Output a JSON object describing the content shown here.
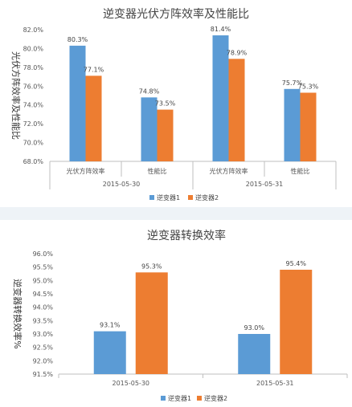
{
  "chart_data": [
    {
      "type": "bar",
      "title": "逆变器光伏方阵效率及性能比",
      "ylabel": "光伏方阵效率及性能比",
      "xlabel": "",
      "ylim": [
        68.0,
        82.0
      ],
      "yticks": [
        "82.0%",
        "80.0%",
        "78.0%",
        "76.0%",
        "74.0%",
        "72.0%",
        "70.0%",
        "68.0%"
      ],
      "groups": [
        "2015-05-30",
        "2015-05-31"
      ],
      "categories": [
        "光伏方阵效率",
        "性能比",
        "光伏方阵效率",
        "性能比"
      ],
      "series": [
        {
          "name": "逆变器1",
          "values": [
            80.3,
            74.8,
            81.4,
            75.7
          ],
          "labels": [
            "80.3%",
            "74.8%",
            "81.4%",
            "75.7%"
          ]
        },
        {
          "name": "逆变器2",
          "values": [
            77.1,
            73.5,
            78.9,
            75.3
          ],
          "labels": [
            "77.1%",
            "73.5%",
            "78.9%",
            "75.3%"
          ]
        }
      ],
      "legend": "bottom",
      "grid": false
    },
    {
      "type": "bar",
      "title": "逆变器转换效率",
      "ylabel": "逆变器转换效率%",
      "xlabel": "",
      "ylim": [
        91.5,
        96.0
      ],
      "yticks": [
        "96.0%",
        "95.5%",
        "95.0%",
        "94.5%",
        "94.0%",
        "93.5%",
        "93.0%",
        "92.5%",
        "92.0%",
        "91.5%"
      ],
      "categories": [
        "2015-05-30",
        "2015-05-31"
      ],
      "series": [
        {
          "name": "逆变器1",
          "values": [
            93.1,
            93.0
          ],
          "labels": [
            "93.1%",
            "93.0%"
          ]
        },
        {
          "name": "逆变器2",
          "values": [
            95.3,
            95.4
          ],
          "labels": [
            "95.3%",
            "95.4%"
          ]
        }
      ],
      "legend": "bottom",
      "grid": false
    }
  ],
  "colors": {
    "series1": "#5b9bd5",
    "series2": "#ed7d31",
    "axis": "#bfbfbf",
    "gap": "#eef3f7"
  }
}
